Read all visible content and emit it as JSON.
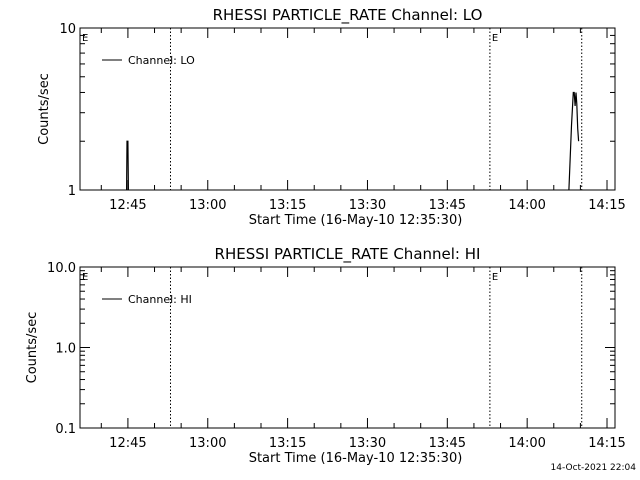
{
  "footer": {
    "timestamp": "14-Oct-2021 22:04"
  },
  "chart_data": [
    {
      "type": "line",
      "title": "RHESSI PARTICLE_RATE Channel: LO",
      "xlabel": "Start Time (16-May-10 12:35:30)",
      "ylabel": "Counts/sec",
      "yscale": "log",
      "ylim": [
        1,
        10
      ],
      "yticks": [
        1,
        10
      ],
      "ytick_labels": [
        "1",
        "10"
      ],
      "xlim": [
        "12:36:00",
        "14:16:30"
      ],
      "xticks": [
        "12:45",
        "13:00",
        "13:15",
        "13:30",
        "13:45",
        "14:00",
        "14:15"
      ],
      "legend": {
        "placement": "top-left",
        "entries": [
          "Channel: LO"
        ]
      },
      "markers": [
        {
          "time": "12:36:00",
          "label": "E"
        },
        {
          "time": "12:53:00",
          "label": ""
        },
        {
          "time": "13:53:00",
          "label": "E"
        },
        {
          "time": "14:10:15",
          "label": ""
        }
      ],
      "series": [
        {
          "name": "Channel: LO",
          "segments": [
            {
              "x": [
                "12:44:45",
                "12:44:50",
                "12:45:00",
                "12:45:05"
              ],
              "y": [
                1,
                2,
                2,
                1
              ]
            },
            {
              "x": [
                "14:07:50",
                "14:08:20",
                "14:08:40",
                "14:08:50",
                "14:09:00",
                "14:09:10",
                "14:09:20",
                "14:09:30",
                "14:09:40"
              ],
              "y": [
                1,
                2.5,
                4,
                4,
                3.3,
                4,
                3.4,
                2.4,
                2
              ]
            }
          ]
        }
      ]
    },
    {
      "type": "line",
      "title": "RHESSI PARTICLE_RATE Channel: HI",
      "xlabel": "Start Time (16-May-10 12:35:30)",
      "ylabel": "Counts/sec",
      "yscale": "log",
      "ylim": [
        0.1,
        10
      ],
      "yticks": [
        0.1,
        1,
        10
      ],
      "ytick_labels": [
        "0.1",
        "1.0",
        "10.0"
      ],
      "xlim": [
        "12:36:00",
        "14:16:30"
      ],
      "xticks": [
        "12:45",
        "13:00",
        "13:15",
        "13:30",
        "13:45",
        "14:00",
        "14:15"
      ],
      "legend": {
        "placement": "top-left",
        "entries": [
          "Channel: HI"
        ]
      },
      "markers": [
        {
          "time": "12:36:00",
          "label": "E"
        },
        {
          "time": "12:53:00",
          "label": ""
        },
        {
          "time": "13:53:00",
          "label": "E"
        },
        {
          "time": "14:10:15",
          "label": ""
        }
      ],
      "series": [
        {
          "name": "Channel: HI",
          "segments": []
        }
      ]
    }
  ]
}
